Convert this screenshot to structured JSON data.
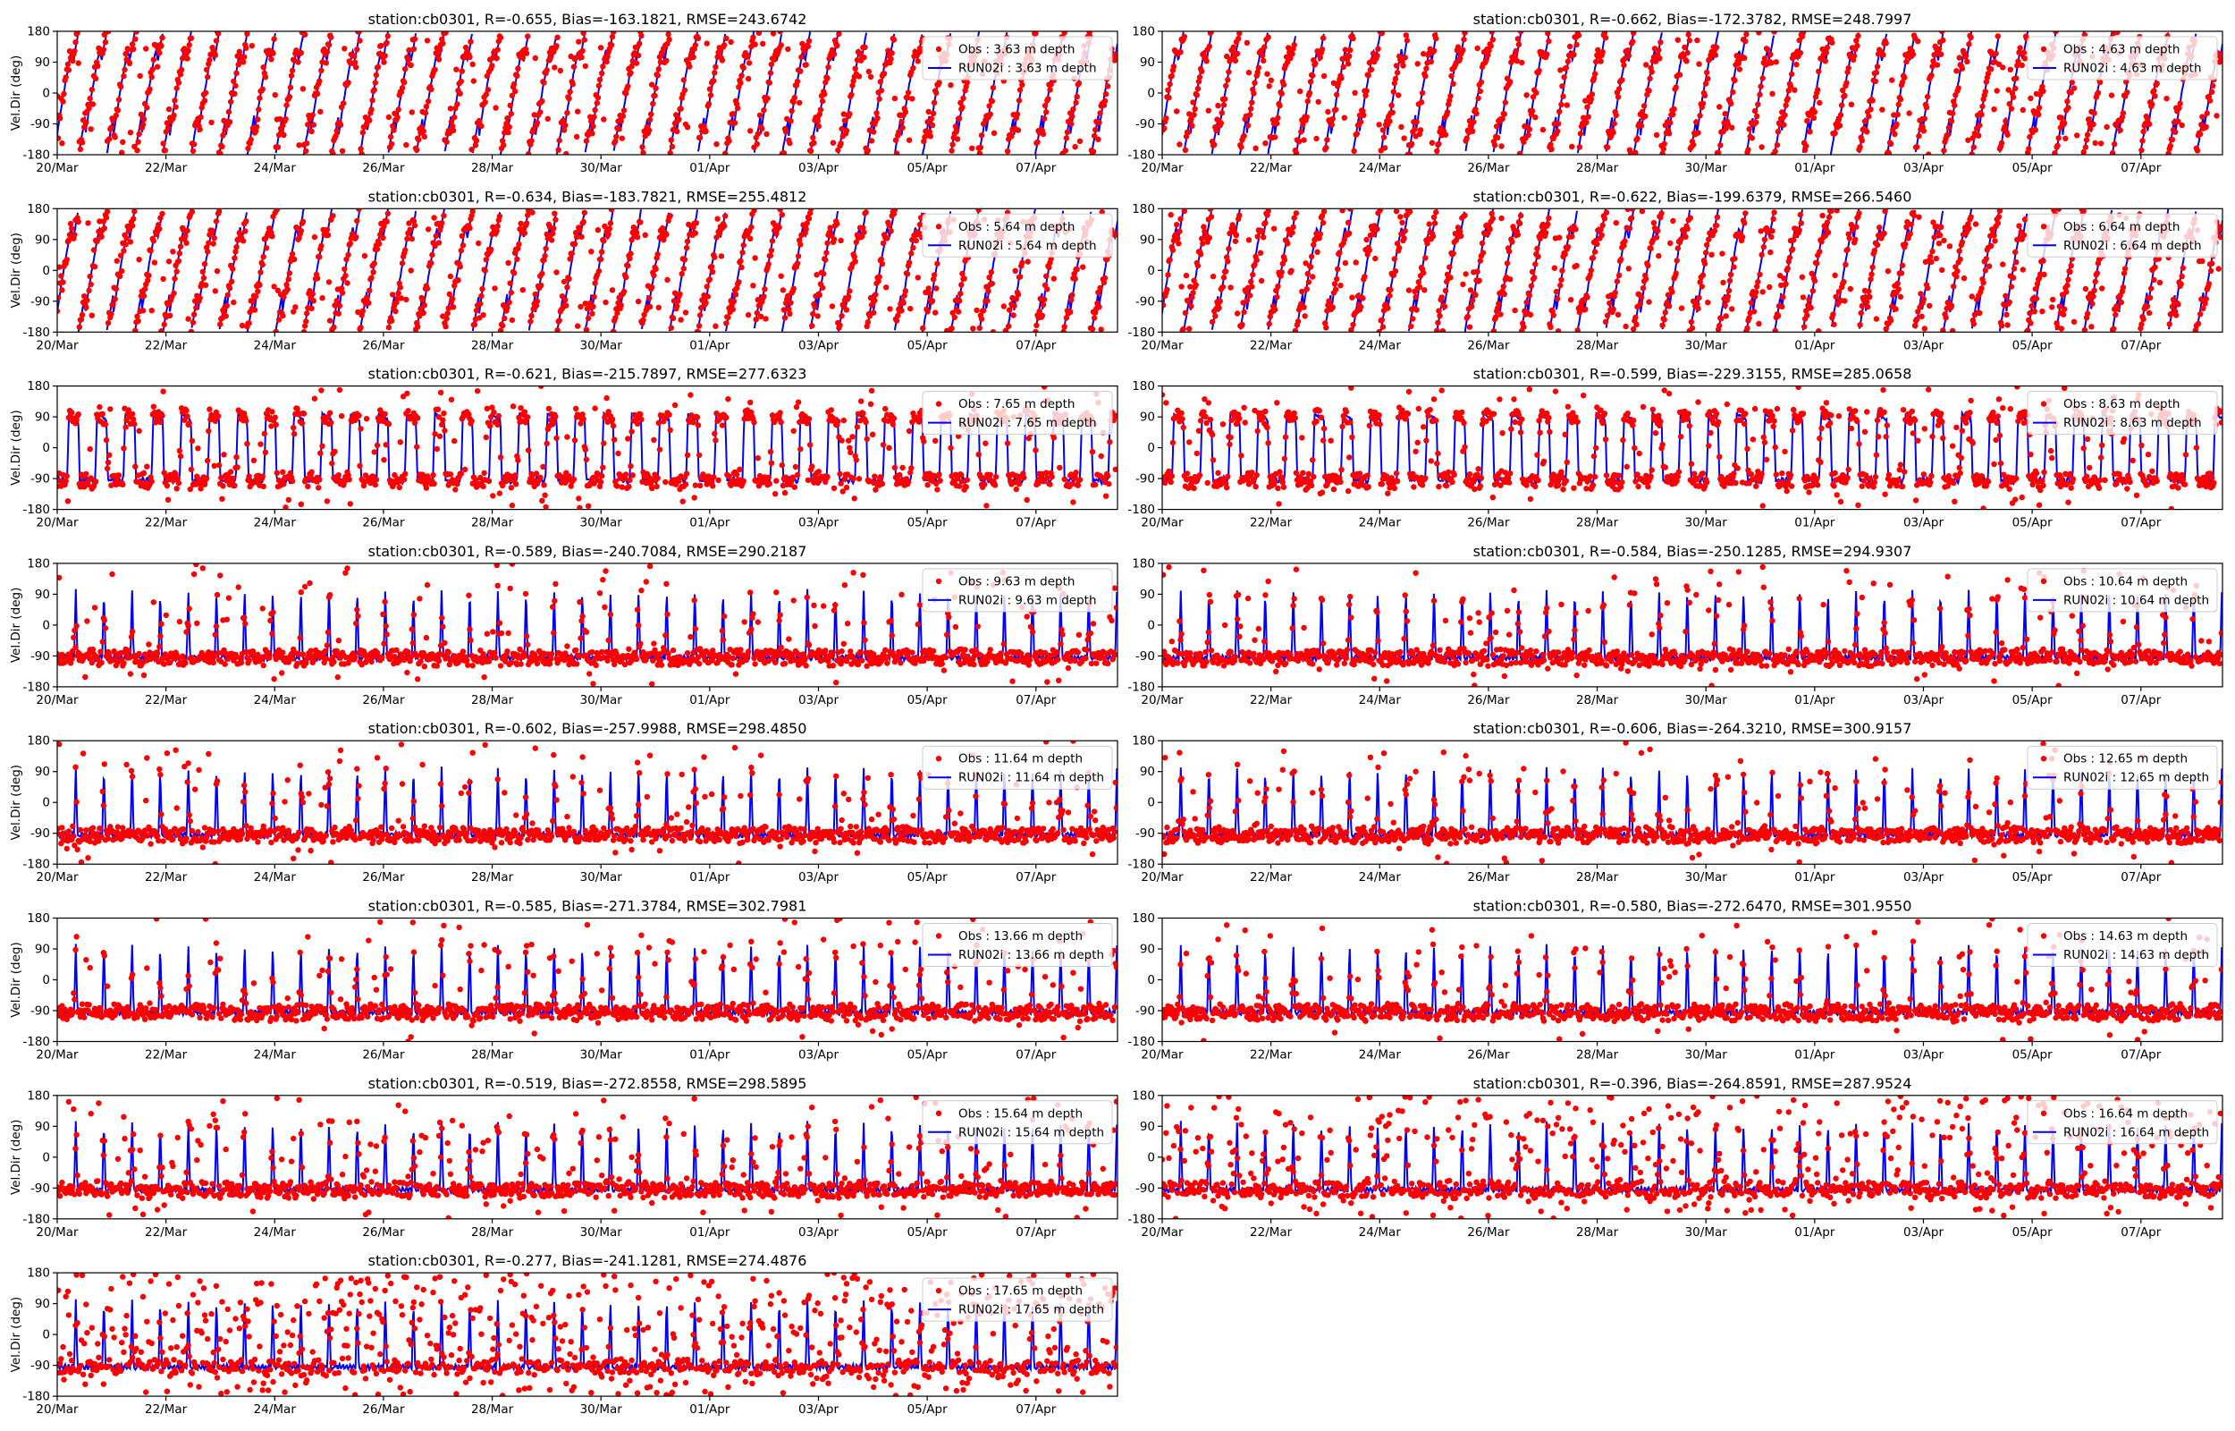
{
  "chart_data": [
    {
      "type": "scatter",
      "title": "station:cb0301, R=-0.655, Bias=-163.1821, RMSE=243.6742",
      "ylabel": "Vel.Dir (deg)",
      "legend": {
        "obs": "Obs : 3.63 m depth",
        "model": "RUN02i : 3.63 m depth",
        "placement": "upper right"
      },
      "x_ticks": [
        "20/Mar",
        "22/Mar",
        "24/Mar",
        "26/Mar",
        "28/Mar",
        "30/Mar",
        "01/Apr",
        "03/Apr",
        "05/Apr",
        "07/Apr"
      ],
      "y_ticks": [
        "180",
        "90",
        "0",
        "-90",
        "-180"
      ],
      "ylim": [
        -180,
        180
      ],
      "xlim": [
        "2000-03-20",
        "2000-04-08 12:00"
      ],
      "series": [
        {
          "name": "Obs : 3.63 m depth",
          "style": "red dots",
          "color": "#ff0000",
          "regime": "shallow",
          "noise": 0.08
        },
        {
          "name": "RUN02i : 3.63 m depth",
          "style": "blue line",
          "color": "#0000ff"
        }
      ]
    },
    {
      "type": "scatter",
      "title": "station:cb0301, R=-0.662, Bias=-172.3782, RMSE=248.7997",
      "ylabel": "",
      "legend": {
        "obs": "Obs : 4.63 m depth",
        "model": "RUN02i : 4.63 m depth",
        "placement": "upper right"
      },
      "x_ticks": [
        "20/Mar",
        "22/Mar",
        "24/Mar",
        "26/Mar",
        "28/Mar",
        "30/Mar",
        "01/Apr",
        "03/Apr",
        "05/Apr",
        "07/Apr"
      ],
      "y_ticks": [
        "180",
        "90",
        "0",
        "-90",
        "-180"
      ],
      "ylim": [
        -180,
        180
      ],
      "xlim": [
        "2000-03-20",
        "2000-04-08 12:00"
      ],
      "series": [
        {
          "name": "Obs : 4.63 m depth",
          "style": "red dots",
          "color": "#ff0000",
          "regime": "shallow",
          "noise": 0.1
        },
        {
          "name": "RUN02i : 4.63 m depth",
          "style": "blue line",
          "color": "#0000ff"
        }
      ]
    },
    {
      "type": "scatter",
      "title": "station:cb0301, R=-0.634, Bias=-183.7821, RMSE=255.4812",
      "ylabel": "Vel.Dir (deg)",
      "legend": {
        "obs": "Obs : 5.64 m depth",
        "model": "RUN02i : 5.64 m depth",
        "placement": "upper right"
      },
      "x_ticks": [
        "20/Mar",
        "22/Mar",
        "24/Mar",
        "26/Mar",
        "28/Mar",
        "30/Mar",
        "01/Apr",
        "03/Apr",
        "05/Apr",
        "07/Apr"
      ],
      "y_ticks": [
        "180",
        "90",
        "0",
        "-90",
        "-180"
      ],
      "ylim": [
        -180,
        180
      ],
      "xlim": [
        "2000-03-20",
        "2000-04-08 12:00"
      ],
      "series": [
        {
          "name": "Obs : 5.64 m depth",
          "style": "red dots",
          "color": "#ff0000",
          "regime": "shallow",
          "noise": 0.12
        },
        {
          "name": "RUN02i : 5.64 m depth",
          "style": "blue line",
          "color": "#0000ff"
        }
      ]
    },
    {
      "type": "scatter",
      "title": "station:cb0301, R=-0.622, Bias=-199.6379, RMSE=266.5460",
      "ylabel": "",
      "legend": {
        "obs": "Obs : 6.64 m depth",
        "model": "RUN02i : 6.64 m depth",
        "placement": "upper right"
      },
      "x_ticks": [
        "20/Mar",
        "22/Mar",
        "24/Mar",
        "26/Mar",
        "28/Mar",
        "30/Mar",
        "01/Apr",
        "03/Apr",
        "05/Apr",
        "07/Apr"
      ],
      "y_ticks": [
        "180",
        "90",
        "0",
        "-90",
        "-180"
      ],
      "ylim": [
        -180,
        180
      ],
      "xlim": [
        "2000-03-20",
        "2000-04-08 12:00"
      ],
      "series": [
        {
          "name": "Obs : 6.64 m depth",
          "style": "red dots",
          "color": "#ff0000",
          "regime": "shallow",
          "noise": 0.15
        },
        {
          "name": "RUN02i : 6.64 m depth",
          "style": "blue line",
          "color": "#0000ff"
        }
      ]
    },
    {
      "type": "scatter",
      "title": "station:cb0301, R=-0.621, Bias=-215.7897, RMSE=277.6323",
      "ylabel": "Vel.Dir (deg)",
      "legend": {
        "obs": "Obs : 7.65 m depth",
        "model": "RUN02i : 7.65 m depth",
        "placement": "upper right"
      },
      "x_ticks": [
        "20/Mar",
        "22/Mar",
        "24/Mar",
        "26/Mar",
        "28/Mar",
        "30/Mar",
        "01/Apr",
        "03/Apr",
        "05/Apr",
        "07/Apr"
      ],
      "y_ticks": [
        "180",
        "90",
        "0",
        "-90",
        "-180"
      ],
      "ylim": [
        -180,
        180
      ],
      "xlim": [
        "2000-03-20",
        "2000-04-08 12:00"
      ],
      "series": [
        {
          "name": "Obs : 7.65 m depth",
          "style": "red dots",
          "color": "#ff0000",
          "regime": "mid",
          "noise": 0.12
        },
        {
          "name": "RUN02i : 7.65 m depth",
          "style": "blue line",
          "color": "#0000ff"
        }
      ]
    },
    {
      "type": "scatter",
      "title": "station:cb0301, R=-0.599, Bias=-229.3155, RMSE=285.0658",
      "ylabel": "",
      "legend": {
        "obs": "Obs : 8.63 m depth",
        "model": "RUN02i : 8.63 m depth",
        "placement": "upper right"
      },
      "x_ticks": [
        "20/Mar",
        "22/Mar",
        "24/Mar",
        "26/Mar",
        "28/Mar",
        "30/Mar",
        "01/Apr",
        "03/Apr",
        "05/Apr",
        "07/Apr"
      ],
      "y_ticks": [
        "180",
        "90",
        "0",
        "-90",
        "-180"
      ],
      "ylim": [
        -180,
        180
      ],
      "xlim": [
        "2000-03-20",
        "2000-04-08 12:00"
      ],
      "series": [
        {
          "name": "Obs : 8.63 m depth",
          "style": "red dots",
          "color": "#ff0000",
          "regime": "mid",
          "noise": 0.14
        },
        {
          "name": "RUN02i : 8.63 m depth",
          "style": "blue line",
          "color": "#0000ff"
        }
      ]
    },
    {
      "type": "scatter",
      "title": "station:cb0301, R=-0.589, Bias=-240.7084, RMSE=290.2187",
      "ylabel": "Vel.Dir (deg)",
      "legend": {
        "obs": "Obs : 9.63 m depth",
        "model": "RUN02i : 9.63 m depth",
        "placement": "upper right"
      },
      "x_ticks": [
        "20/Mar",
        "22/Mar",
        "24/Mar",
        "26/Mar",
        "28/Mar",
        "30/Mar",
        "01/Apr",
        "03/Apr",
        "05/Apr",
        "07/Apr"
      ],
      "y_ticks": [
        "180",
        "90",
        "0",
        "-90",
        "-180"
      ],
      "ylim": [
        -180,
        180
      ],
      "xlim": [
        "2000-03-20",
        "2000-04-08 12:00"
      ],
      "series": [
        {
          "name": "Obs : 9.63 m depth",
          "style": "red dots",
          "color": "#ff0000",
          "regime": "deep",
          "noise": 0.12
        },
        {
          "name": "RUN02i : 9.63 m depth",
          "style": "blue line",
          "color": "#0000ff"
        }
      ]
    },
    {
      "type": "scatter",
      "title": "station:cb0301, R=-0.584, Bias=-250.1285, RMSE=294.9307",
      "ylabel": "",
      "legend": {
        "obs": "Obs : 10.64 m depth",
        "model": "RUN02i : 10.64 m depth",
        "placement": "upper right"
      },
      "x_ticks": [
        "20/Mar",
        "22/Mar",
        "24/Mar",
        "26/Mar",
        "28/Mar",
        "30/Mar",
        "01/Apr",
        "03/Apr",
        "05/Apr",
        "07/Apr"
      ],
      "y_ticks": [
        "180",
        "90",
        "0",
        "-90",
        "-180"
      ],
      "ylim": [
        -180,
        180
      ],
      "xlim": [
        "2000-03-20",
        "2000-04-08 12:00"
      ],
      "series": [
        {
          "name": "Obs : 10.64 m depth",
          "style": "red dots",
          "color": "#ff0000",
          "regime": "deep",
          "noise": 0.12
        },
        {
          "name": "RUN02i : 10.64 m depth",
          "style": "blue line",
          "color": "#0000ff"
        }
      ]
    },
    {
      "type": "scatter",
      "title": "station:cb0301, R=-0.602, Bias=-257.9988, RMSE=298.4850",
      "ylabel": "Vel.Dir (deg)",
      "legend": {
        "obs": "Obs : 11.64 m depth",
        "model": "RUN02i : 11.64 m depth",
        "placement": "upper right"
      },
      "x_ticks": [
        "20/Mar",
        "22/Mar",
        "24/Mar",
        "26/Mar",
        "28/Mar",
        "30/Mar",
        "01/Apr",
        "03/Apr",
        "05/Apr",
        "07/Apr"
      ],
      "y_ticks": [
        "180",
        "90",
        "0",
        "-90",
        "-180"
      ],
      "ylim": [
        -180,
        180
      ],
      "xlim": [
        "2000-03-20",
        "2000-04-08 12:00"
      ],
      "series": [
        {
          "name": "Obs : 11.64 m depth",
          "style": "red dots",
          "color": "#ff0000",
          "regime": "deep",
          "noise": 0.12
        },
        {
          "name": "RUN02i : 11.64 m depth",
          "style": "blue line",
          "color": "#0000ff"
        }
      ]
    },
    {
      "type": "scatter",
      "title": "station:cb0301, R=-0.606, Bias=-264.3210, RMSE=300.9157",
      "ylabel": "",
      "legend": {
        "obs": "Obs : 12.65 m depth",
        "model": "RUN02i : 12.65 m depth",
        "placement": "upper right"
      },
      "x_ticks": [
        "20/Mar",
        "22/Mar",
        "24/Mar",
        "26/Mar",
        "28/Mar",
        "30/Mar",
        "01/Apr",
        "03/Apr",
        "05/Apr",
        "07/Apr"
      ],
      "y_ticks": [
        "180",
        "90",
        "0",
        "-90",
        "-180"
      ],
      "ylim": [
        -180,
        180
      ],
      "xlim": [
        "2000-03-20",
        "2000-04-08 12:00"
      ],
      "series": [
        {
          "name": "Obs : 12.65 m depth",
          "style": "red dots",
          "color": "#ff0000",
          "regime": "deep",
          "noise": 0.1
        },
        {
          "name": "RUN02i : 12.65 m depth",
          "style": "blue line",
          "color": "#0000ff"
        }
      ]
    },
    {
      "type": "scatter",
      "title": "station:cb0301, R=-0.585, Bias=-271.3784, RMSE=302.7981",
      "ylabel": "Vel.Dir (deg)",
      "legend": {
        "obs": "Obs : 13.66 m depth",
        "model": "RUN02i : 13.66 m depth",
        "placement": "upper right"
      },
      "x_ticks": [
        "20/Mar",
        "22/Mar",
        "24/Mar",
        "26/Mar",
        "28/Mar",
        "30/Mar",
        "01/Apr",
        "03/Apr",
        "05/Apr",
        "07/Apr"
      ],
      "y_ticks": [
        "180",
        "90",
        "0",
        "-90",
        "-180"
      ],
      "ylim": [
        -180,
        180
      ],
      "xlim": [
        "2000-03-20",
        "2000-04-08 12:00"
      ],
      "series": [
        {
          "name": "Obs : 13.66 m depth",
          "style": "red dots",
          "color": "#ff0000",
          "regime": "deep",
          "noise": 0.1
        },
        {
          "name": "RUN02i : 13.66 m depth",
          "style": "blue line",
          "color": "#0000ff"
        }
      ]
    },
    {
      "type": "scatter",
      "title": "station:cb0301, R=-0.580, Bias=-272.6470, RMSE=301.9550",
      "ylabel": "",
      "legend": {
        "obs": "Obs : 14.63 m depth",
        "model": "RUN02i : 14.63 m depth",
        "placement": "upper right"
      },
      "x_ticks": [
        "20/Mar",
        "22/Mar",
        "24/Mar",
        "26/Mar",
        "28/Mar",
        "30/Mar",
        "01/Apr",
        "03/Apr",
        "05/Apr",
        "07/Apr"
      ],
      "y_ticks": [
        "180",
        "90",
        "0",
        "-90",
        "-180"
      ],
      "ylim": [
        -180,
        180
      ],
      "xlim": [
        "2000-03-20",
        "2000-04-08 12:00"
      ],
      "series": [
        {
          "name": "Obs : 14.63 m depth",
          "style": "red dots",
          "color": "#ff0000",
          "regime": "deep",
          "noise": 0.1
        },
        {
          "name": "RUN02i : 14.63 m depth",
          "style": "blue line",
          "color": "#0000ff"
        }
      ]
    },
    {
      "type": "scatter",
      "title": "station:cb0301, R=-0.519, Bias=-272.8558, RMSE=298.5895",
      "ylabel": "Vel.Dir (deg)",
      "legend": {
        "obs": "Obs : 15.64 m depth",
        "model": "RUN02i : 15.64 m depth",
        "placement": "upper right"
      },
      "x_ticks": [
        "20/Mar",
        "22/Mar",
        "24/Mar",
        "26/Mar",
        "28/Mar",
        "30/Mar",
        "01/Apr",
        "03/Apr",
        "05/Apr",
        "07/Apr"
      ],
      "y_ticks": [
        "180",
        "90",
        "0",
        "-90",
        "-180"
      ],
      "ylim": [
        -180,
        180
      ],
      "xlim": [
        "2000-03-20",
        "2000-04-08 12:00"
      ],
      "series": [
        {
          "name": "Obs : 15.64 m depth",
          "style": "red dots",
          "color": "#ff0000",
          "regime": "deep",
          "noise": 0.18
        },
        {
          "name": "RUN02i : 15.64 m depth",
          "style": "blue line",
          "color": "#0000ff"
        }
      ]
    },
    {
      "type": "scatter",
      "title": "station:cb0301, R=-0.396, Bias=-264.8591, RMSE=287.9524",
      "ylabel": "",
      "legend": {
        "obs": "Obs : 16.64 m depth",
        "model": "RUN02i : 16.64 m depth",
        "placement": "upper right"
      },
      "x_ticks": [
        "20/Mar",
        "22/Mar",
        "24/Mar",
        "26/Mar",
        "28/Mar",
        "30/Mar",
        "01/Apr",
        "03/Apr",
        "05/Apr",
        "07/Apr"
      ],
      "y_ticks": [
        "180",
        "90",
        "0",
        "-90",
        "-180"
      ],
      "ylim": [
        -180,
        180
      ],
      "xlim": [
        "2000-03-20",
        "2000-04-08 12:00"
      ],
      "series": [
        {
          "name": "Obs : 16.64 m depth",
          "style": "red dots",
          "color": "#ff0000",
          "regime": "deep",
          "noise": 0.35
        },
        {
          "name": "RUN02i : 16.64 m depth",
          "style": "blue line",
          "color": "#0000ff"
        }
      ]
    },
    {
      "type": "scatter",
      "title": "station:cb0301, R=-0.277, Bias=-241.1281, RMSE=274.4876",
      "ylabel": "Vel.Dir (deg)",
      "legend": {
        "obs": "Obs : 17.65 m depth",
        "model": "RUN02i : 17.65 m depth",
        "placement": "upper right"
      },
      "x_ticks": [
        "20/Mar",
        "22/Mar",
        "24/Mar",
        "26/Mar",
        "28/Mar",
        "30/Mar",
        "01/Apr",
        "03/Apr",
        "05/Apr",
        "07/Apr"
      ],
      "y_ticks": [
        "180",
        "90",
        "0",
        "-90",
        "-180"
      ],
      "ylim": [
        -180,
        180
      ],
      "xlim": [
        "2000-03-20",
        "2000-04-08 12:00"
      ],
      "series": [
        {
          "name": "Obs : 17.65 m depth",
          "style": "red dots",
          "color": "#ff0000",
          "regime": "deep",
          "noise": 0.55
        },
        {
          "name": "RUN02i : 17.65 m depth",
          "style": "blue line",
          "color": "#0000ff"
        }
      ]
    }
  ]
}
